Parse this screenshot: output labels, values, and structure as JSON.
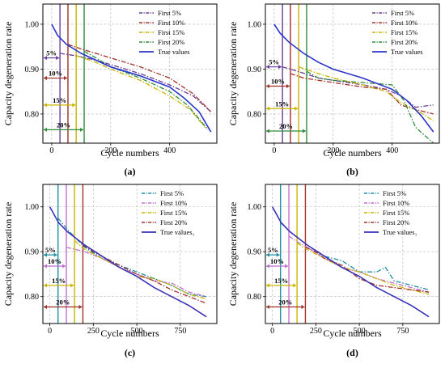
{
  "chart_data": [
    {
      "type": "line",
      "panel_label": "(a)",
      "xlabel": "Cycle numbers",
      "ylabel": "Capacity degeneration rate",
      "xlim": [
        -30,
        560
      ],
      "ylim": [
        0.735,
        1.045
      ],
      "xticks": [
        0,
        200,
        400
      ],
      "yticks": [
        0.8,
        0.9,
        1.0
      ],
      "ytick_labels": [
        "0.80",
        "0.90",
        "1.00"
      ],
      "grid": true,
      "legend_position": "top-right",
      "markers": [
        {
          "label": "5%",
          "x": 28,
          "y": 0.925,
          "color": "#6a3d9a"
        },
        {
          "label": "10%",
          "x": 55,
          "y": 0.88,
          "color": "#a0302a"
        },
        {
          "label": "15%",
          "x": 83,
          "y": 0.82,
          "color": "#c8b400"
        },
        {
          "label": "20%",
          "x": 110,
          "y": 0.765,
          "color": "#2e8b3a"
        }
      ],
      "series": [
        {
          "name": "First 5%",
          "color": "#6a3d9a",
          "dash": "6 2 1.5 2",
          "x": [
            28,
            80,
            150,
            200,
            300,
            400,
            480,
            540
          ],
          "values": [
            0.935,
            0.93,
            0.92,
            0.91,
            0.89,
            0.865,
            0.84,
            0.805
          ]
        },
        {
          "name": "First 10%",
          "color": "#a0302a",
          "dash": "6 2 1.5 2",
          "x": [
            55,
            100,
            200,
            300,
            400,
            480,
            540
          ],
          "values": [
            0.955,
            0.945,
            0.925,
            0.905,
            0.88,
            0.845,
            0.805
          ]
        },
        {
          "name": "First 15%",
          "color": "#c8b400",
          "dash": "6 2 1.5 2",
          "x": [
            83,
            150,
            200,
            300,
            400,
            470,
            520
          ],
          "values": [
            0.93,
            0.915,
            0.9,
            0.875,
            0.84,
            0.81,
            0.77
          ]
        },
        {
          "name": "First 20%",
          "color": "#2e8b3a",
          "dash": "6 2 1.5 2",
          "x": [
            110,
            150,
            200,
            300,
            400,
            460,
            530
          ],
          "values": [
            0.94,
            0.925,
            0.905,
            0.88,
            0.85,
            0.82,
            0.765
          ]
        },
        {
          "name": "True values",
          "color": "#2a35c9",
          "dash": "",
          "x": [
            0,
            20,
            50,
            100,
            150,
            200,
            300,
            400,
            450,
            500,
            540
          ],
          "values": [
            1.0,
            0.975,
            0.955,
            0.935,
            0.92,
            0.905,
            0.885,
            0.86,
            0.835,
            0.805,
            0.76
          ]
        }
      ]
    },
    {
      "type": "line",
      "panel_label": "(b)",
      "xlabel": "Cycle numbers",
      "ylabel": "",
      "xlim": [
        -30,
        560
      ],
      "ylim": [
        0.735,
        1.045
      ],
      "xticks": [
        0,
        200,
        400
      ],
      "yticks": [
        0.8,
        0.9,
        1.0
      ],
      "ytick_labels": [
        "0.80",
        "0.90",
        "1.00"
      ],
      "grid": true,
      "legend_position": "top-right",
      "markers": [
        {
          "label": "5%",
          "x": 28,
          "y": 0.905,
          "color": "#6a3d9a"
        },
        {
          "label": "10%",
          "x": 55,
          "y": 0.862,
          "color": "#a0302a"
        },
        {
          "label": "15%",
          "x": 83,
          "y": 0.812,
          "color": "#c8b400"
        },
        {
          "label": "20%",
          "x": 110,
          "y": 0.762,
          "color": "#2e8b3a"
        }
      ],
      "series": [
        {
          "name": "First 5%",
          "color": "#6a3d9a",
          "dash": "6 2 1.5 2",
          "x": [
            28,
            80,
            150,
            200,
            300,
            380,
            430,
            480,
            540
          ],
          "values": [
            0.905,
            0.895,
            0.88,
            0.875,
            0.865,
            0.855,
            0.84,
            0.815,
            0.82
          ]
        },
        {
          "name": "First 10%",
          "color": "#a0302a",
          "dash": "6 2 1.5 2",
          "x": [
            55,
            100,
            150,
            200,
            300,
            380,
            430,
            480,
            540
          ],
          "values": [
            0.89,
            0.88,
            0.875,
            0.87,
            0.86,
            0.855,
            0.82,
            0.81,
            0.8
          ]
        },
        {
          "name": "First 15%",
          "color": "#c8b400",
          "dash": "6 2 1.5 2",
          "x": [
            83,
            150,
            200,
            300,
            380,
            430,
            480,
            540
          ],
          "values": [
            0.905,
            0.89,
            0.88,
            0.865,
            0.85,
            0.825,
            0.81,
            0.785
          ]
        },
        {
          "name": "First 20%",
          "color": "#2e8b3a",
          "dash": "6 2 1.5 2",
          "x": [
            110,
            150,
            200,
            300,
            400,
            440,
            480,
            540
          ],
          "values": [
            0.895,
            0.88,
            0.875,
            0.87,
            0.865,
            0.83,
            0.77,
            0.735
          ]
        },
        {
          "name": "True values",
          "color": "#2a35c9",
          "dash": "",
          "x": [
            0,
            20,
            50,
            100,
            150,
            200,
            300,
            400,
            450,
            500,
            540
          ],
          "values": [
            1.0,
            0.98,
            0.96,
            0.935,
            0.915,
            0.9,
            0.88,
            0.855,
            0.83,
            0.795,
            0.76
          ]
        }
      ]
    },
    {
      "type": "line",
      "panel_label": "(c)",
      "xlabel": "Cycle numbers",
      "ylabel": "Capacity degeneration rate",
      "xlim": [
        -40,
        960
      ],
      "ylim": [
        0.74,
        1.05
      ],
      "xticks": [
        0,
        250,
        500,
        750
      ],
      "yticks": [
        0.8,
        0.9,
        1.0
      ],
      "ytick_labels": [
        "0.80",
        "0.90",
        "1.00"
      ],
      "grid": true,
      "legend_position": "top-right",
      "markers": [
        {
          "label": "5%",
          "x": 47,
          "y": 0.893,
          "color": "#1f8fa6"
        },
        {
          "label": "10%",
          "x": 95,
          "y": 0.868,
          "color": "#c070d0"
        },
        {
          "label": "15%",
          "x": 142,
          "y": 0.825,
          "color": "#c8b400"
        },
        {
          "label": "20%",
          "x": 190,
          "y": 0.777,
          "color": "#a0302a"
        }
      ],
      "series": [
        {
          "name": "First 5%",
          "color": "#1f8fa6",
          "dash": "6 2 1.5 2",
          "x": [
            47,
            100,
            200,
            300,
            400,
            500,
            600,
            700,
            800,
            900
          ],
          "values": [
            0.975,
            0.95,
            0.91,
            0.885,
            0.87,
            0.855,
            0.84,
            0.825,
            0.805,
            0.8
          ]
        },
        {
          "name": "First 10%",
          "color": "#c070d0",
          "dash": "6 2 1.5 2",
          "x": [
            95,
            150,
            200,
            300,
            400,
            500,
            600,
            700,
            800,
            900
          ],
          "values": [
            0.91,
            0.905,
            0.9,
            0.885,
            0.865,
            0.85,
            0.835,
            0.83,
            0.81,
            0.8
          ]
        },
        {
          "name": "First 15%",
          "color": "#c8b400",
          "dash": "6 2 1.5 2",
          "x": [
            142,
            200,
            300,
            400,
            500,
            600,
            700,
            800,
            900
          ],
          "values": [
            0.925,
            0.905,
            0.885,
            0.865,
            0.845,
            0.84,
            0.825,
            0.805,
            0.795
          ]
        },
        {
          "name": "First 20%",
          "color": "#a0302a",
          "dash": "6 2 1.5 2",
          "x": [
            190,
            250,
            300,
            400,
            500,
            600,
            700,
            800,
            900
          ],
          "values": [
            0.915,
            0.9,
            0.89,
            0.87,
            0.85,
            0.835,
            0.815,
            0.8,
            0.785
          ]
        },
        {
          "name": "True values",
          "color": "#3a33b8",
          "dash": "",
          "x": [
            0,
            50,
            100,
            150,
            200,
            300,
            400,
            500,
            600,
            700,
            800,
            900
          ],
          "values": [
            1.0,
            0.965,
            0.945,
            0.93,
            0.915,
            0.89,
            0.865,
            0.845,
            0.82,
            0.8,
            0.78,
            0.755
          ]
        }
      ]
    },
    {
      "type": "line",
      "panel_label": "(d)",
      "xlabel": "Cycle numbers",
      "ylabel": "Capacity degeneration rate",
      "xlim": [
        -40,
        960
      ],
      "ylim": [
        0.74,
        1.05
      ],
      "xticks": [
        0,
        250,
        500,
        750
      ],
      "yticks": [
        0.8,
        0.9,
        1.0
      ],
      "ytick_labels": [
        "0.80",
        "0.90",
        "1.00"
      ],
      "grid": true,
      "legend_position": "top-right",
      "markers": [
        {
          "label": "5%",
          "x": 47,
          "y": 0.893,
          "color": "#1f8fa6"
        },
        {
          "label": "10%",
          "x": 95,
          "y": 0.868,
          "color": "#c070d0"
        },
        {
          "label": "15%",
          "x": 142,
          "y": 0.825,
          "color": "#c8b400"
        },
        {
          "label": "20%",
          "x": 190,
          "y": 0.777,
          "color": "#a0302a"
        }
      ],
      "series": [
        {
          "name": "First 5%",
          "color": "#1f8fa6",
          "dash": "6 2 1.5 2",
          "x": [
            47,
            100,
            200,
            300,
            400,
            500,
            600,
            650,
            700,
            800,
            900
          ],
          "values": [
            0.965,
            0.945,
            0.915,
            0.89,
            0.88,
            0.855,
            0.855,
            0.865,
            0.835,
            0.825,
            0.815
          ]
        },
        {
          "name": "First 10%",
          "color": "#c070d0",
          "dash": "6 2 1.5 2",
          "x": [
            95,
            150,
            200,
            300,
            400,
            500,
            600,
            700,
            800,
            900
          ],
          "values": [
            0.935,
            0.92,
            0.91,
            0.885,
            0.865,
            0.855,
            0.84,
            0.83,
            0.82,
            0.81
          ]
        },
        {
          "name": "First 15%",
          "color": "#c8b400",
          "dash": "6 2 1.5 2",
          "x": [
            142,
            200,
            300,
            400,
            500,
            600,
            700,
            800,
            900
          ],
          "values": [
            0.92,
            0.905,
            0.885,
            0.865,
            0.855,
            0.84,
            0.825,
            0.815,
            0.805
          ]
        },
        {
          "name": "First 20%",
          "color": "#a0302a",
          "dash": "6 2 1.5 2",
          "x": [
            190,
            250,
            300,
            400,
            500,
            600,
            700,
            800,
            900
          ],
          "values": [
            0.91,
            0.9,
            0.885,
            0.87,
            0.84,
            0.825,
            0.82,
            0.815,
            0.81
          ]
        },
        {
          "name": "True values",
          "color": "#3a33b8",
          "dash": "",
          "x": [
            0,
            50,
            100,
            150,
            200,
            300,
            400,
            500,
            600,
            700,
            800,
            900
          ],
          "values": [
            1.0,
            0.965,
            0.945,
            0.93,
            0.915,
            0.89,
            0.865,
            0.845,
            0.82,
            0.8,
            0.78,
            0.755
          ]
        }
      ]
    }
  ],
  "legend_labels": {
    "a": [
      "First 5%",
      "First 10%",
      "First 15%",
      "First 20%",
      "True values"
    ],
    "b": [
      "First 5%",
      "First 10%",
      "First 15%",
      "First 20%",
      "True values"
    ],
    "c": [
      "First 5%",
      "First 10%",
      "First 15%",
      "First 20%",
      "True values₁"
    ],
    "d": [
      "First 5%",
      "First 10%",
      "First 15%",
      "First 20%",
      "True values₁"
    ]
  }
}
